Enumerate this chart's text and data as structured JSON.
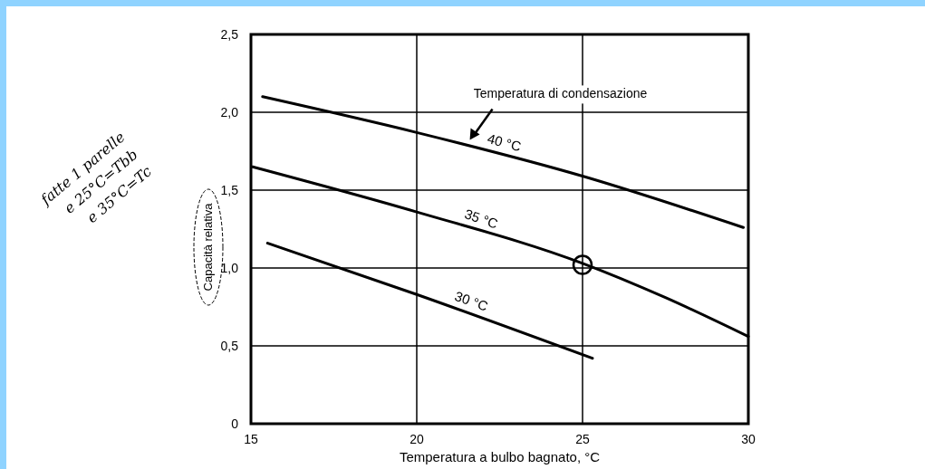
{
  "chart_data": {
    "type": "line",
    "xlabel": "Temperatura a bulbo bagnato, °C",
    "ylabel": "Capacità relativa",
    "xlim": [
      15,
      30
    ],
    "xticks": [
      15,
      20,
      25,
      30
    ],
    "ylim": [
      0,
      2.5
    ],
    "yticks": [
      {
        "value": 0,
        "label": "0"
      },
      {
        "value": 0.5,
        "label": "0,5"
      },
      {
        "value": 1,
        "label": "1,0"
      },
      {
        "value": 1.5,
        "label": "1,5"
      },
      {
        "value": 2,
        "label": "2,0"
      },
      {
        "value": 2.5,
        "label": "2,5"
      }
    ],
    "grid": true,
    "line_style": "solid",
    "marker": "none",
    "series": [
      {
        "name": "40 °C",
        "color": "#000000",
        "x": [
          15.35,
          20,
          25,
          29.85
        ],
        "values": [
          2.1,
          1.87,
          1.59,
          1.26
        ]
      },
      {
        "name": "35 °C",
        "color": "#000000",
        "x": [
          15.05,
          20,
          25,
          27.5,
          30
        ],
        "values": [
          1.65,
          1.36,
          1.03,
          0.81,
          0.56
        ]
      },
      {
        "name": "30 °C",
        "color": "#000000",
        "x": [
          15.5,
          20,
          25.3
        ],
        "values": [
          1.16,
          0.83,
          0.42
        ]
      },
      {
        "type": "scatter",
        "marker": "circle",
        "color": "#000000",
        "x": [
          25
        ],
        "values": [
          1.02
        ]
      }
    ],
    "annotations": [
      "Temperatura di condensazione",
      "fatte 1 parelle e 25°C=Tbb e 35°C=Tc"
    ]
  }
}
